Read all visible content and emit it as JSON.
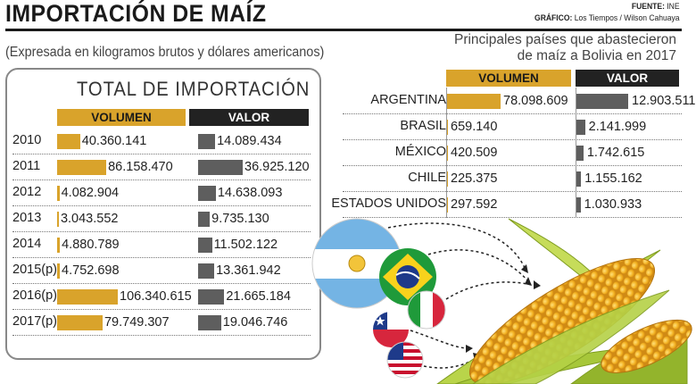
{
  "header": {
    "title": "IMPORTACIÓN DE MAÍZ",
    "source_label": "FUENTE:",
    "source": "INE",
    "graphic_label": "GRÁFICO:",
    "graphic": "Los Tiempos / Wilson Cahuaya"
  },
  "subtitle": "(Expresada en kilogramos brutos y dólares americanos)",
  "colors": {
    "volumen": "#d9a32b",
    "valor": "#5e5e5e",
    "valor_header": "#222222"
  },
  "chart_data": [
    {
      "type": "bar",
      "title": "TOTAL DE IMPORTACIÓN",
      "columns": [
        "VOLUMEN",
        "VALOR"
      ],
      "categories": [
        "2010",
        "2011",
        "2012",
        "2013",
        "2014",
        "2015(p)",
        "2016(p)",
        "2017(p)"
      ],
      "series": [
        {
          "name": "VOLUMEN",
          "values": [
            40360141,
            86158470,
            4082904,
            3043552,
            4880789,
            4752698,
            106340615,
            79749307
          ],
          "labels": [
            "40.360.141",
            "86.158.470",
            "4.082.904",
            "3.043.552",
            "4.880.789",
            "4.752.698",
            "106.340.615",
            "79.749.307"
          ]
        },
        {
          "name": "VALOR",
          "values": [
            14089434,
            36925120,
            14638093,
            9735130,
            11502122,
            13361942,
            21665184,
            19046746
          ],
          "labels": [
            "14.089.434",
            "36.925.120",
            "14.638.093",
            "9.735.130",
            "11.502.122",
            "13.361.942",
            "21.665.184",
            "19.046.746"
          ]
        }
      ]
    },
    {
      "type": "bar",
      "title": "Principales países que abastecieron de maíz a Bolivia en 2017",
      "title_lines": [
        "Principales países que abastecieron",
        "de maíz a Bolivia en 2017"
      ],
      "columns": [
        "VOLUMEN",
        "VALOR"
      ],
      "categories": [
        "ARGENTINA",
        "BRASIL",
        "MÉXICO",
        "CHILE",
        "ESTADOS UNIDOS"
      ],
      "series": [
        {
          "name": "VOLUMEN",
          "values": [
            78098609,
            659140,
            420509,
            225375,
            297592
          ],
          "labels": [
            "78.098.609",
            "659.140",
            "420.509",
            "225.375",
            "297.592"
          ]
        },
        {
          "name": "VALOR",
          "values": [
            12903511,
            2141999,
            1742615,
            1155162,
            1030933
          ],
          "labels": [
            "12.903.511",
            "2.141.999",
            "1.742.615",
            "1.155.162",
            "1.030.933"
          ]
        }
      ]
    }
  ],
  "illustration": {
    "flags": [
      "argentina-flag",
      "brazil-flag",
      "italy-flag",
      "chile-flag",
      "usa-flag"
    ],
    "object": "corn-cob"
  }
}
